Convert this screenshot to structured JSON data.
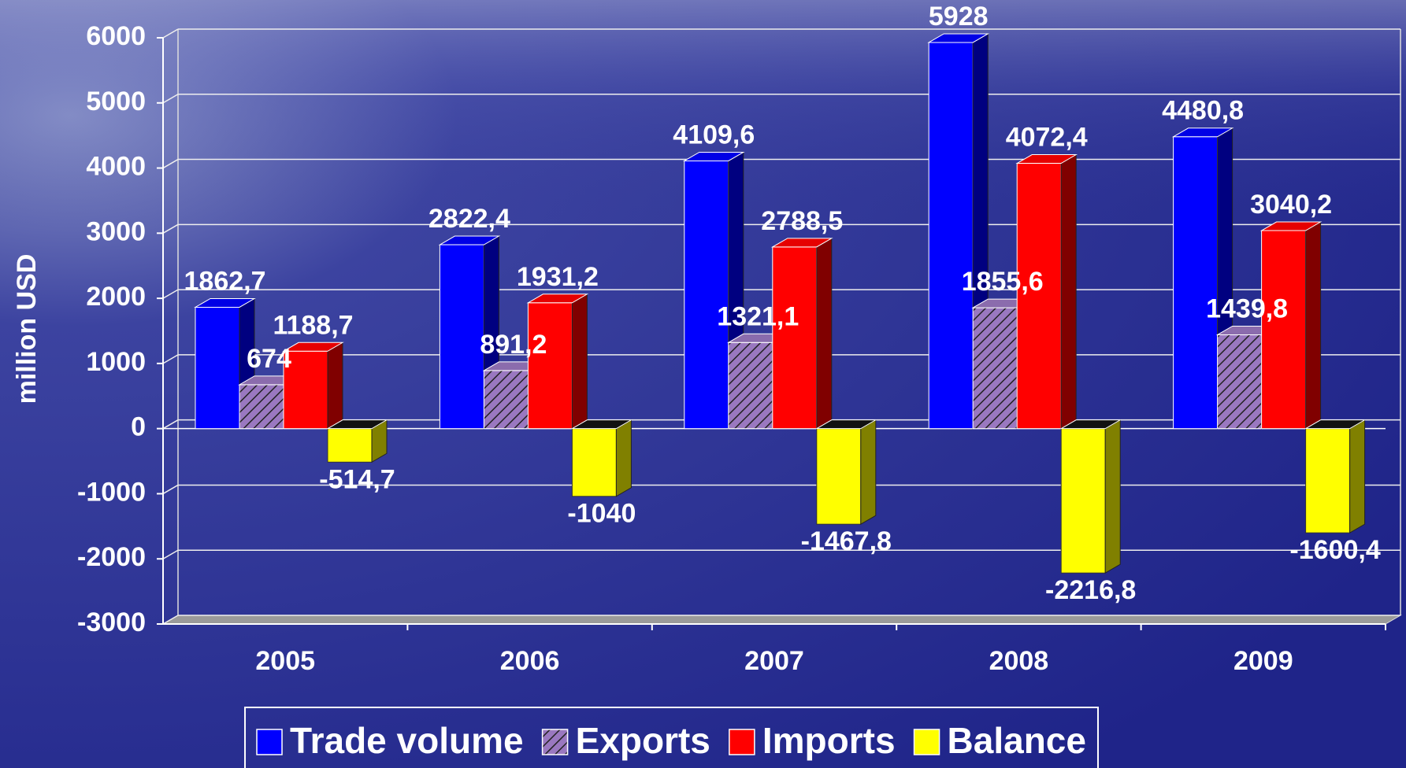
{
  "chart_data": {
    "type": "bar3d",
    "y_label": "million USD",
    "categories": [
      "2005",
      "2006",
      "2007",
      "2008",
      "2009"
    ],
    "series": [
      {
        "name": "Trade volume",
        "color": "#0000ff",
        "values": [
          1862.7,
          2822.4,
          4109.6,
          5928,
          4480.8
        ],
        "value_labels": [
          "1862,7",
          "2822,4",
          "4109,6",
          "5928",
          "4480,8"
        ]
      },
      {
        "name": "Exports",
        "color": "#9a78c0",
        "hatch": true,
        "values": [
          674,
          891.2,
          1321.1,
          1855.6,
          1439.8
        ],
        "value_labels": [
          "674",
          "891,2",
          "1321,1",
          "1855,6",
          "1439,8"
        ]
      },
      {
        "name": "Imports",
        "color": "#ff0000",
        "values": [
          1188.7,
          1931.2,
          2788.5,
          4072.4,
          3040.2
        ],
        "value_labels": [
          "1188,7",
          "1931,2",
          "2788,5",
          "4072,4",
          "3040,2"
        ]
      },
      {
        "name": "Balance",
        "color": "#ffff00",
        "values": [
          -514.7,
          -1040,
          -1467.8,
          -2216.8,
          -1600.4
        ],
        "value_labels": [
          "-514,7",
          "-1040",
          "-1467,8",
          "-2216,8",
          "-1600,4"
        ]
      }
    ],
    "ylim": [
      -3000,
      6000
    ],
    "yticks": [
      -3000,
      -2000,
      -1000,
      0,
      1000,
      2000,
      3000,
      4000,
      5000,
      6000
    ],
    "grid": true,
    "legend": "bottom"
  }
}
